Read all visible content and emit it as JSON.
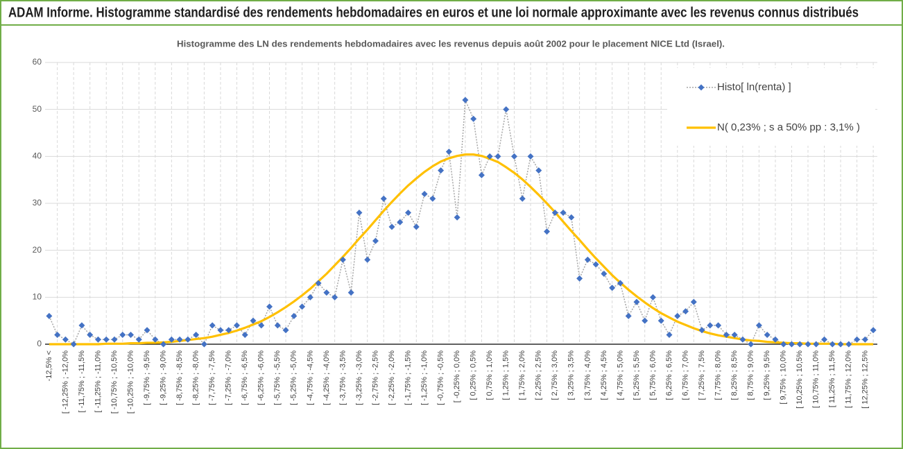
{
  "chart_data": {
    "type": "line",
    "title": "ADAM Informe. Histogramme standardisé des rendements hebdomadaires en euros et une loi normale approximante avec les revenus connus distribués",
    "subtitle": "Histogramme des LN des rendements hebdomadaires avec les revenus depuis août 2002 pour le placement NICE Ltd (Israel).",
    "categories": [
      "-12,5% <",
      null,
      "[ -12,25% ; -12,0%",
      null,
      "[ -11,75% ; -11,5%",
      null,
      "[ -11,25% ; -11,0%",
      null,
      "[ -10,75% ; -10,5%",
      null,
      "[ -10,25% ; -10,0%",
      null,
      "[ -9,75% ; -9,5%",
      null,
      "[ -9,25% ; -9,0%",
      null,
      "[ -8,75% ; -8,5%",
      null,
      "[ -8,25% ; -8,0%",
      null,
      "[ -7,75% ; -7,5%",
      null,
      "[ -7,25% ; -7,0%",
      null,
      "[ -6,75% ; -6,5%",
      null,
      "[ -6,25% ; -6,0%",
      null,
      "[ -5,75% ; -5,5%",
      null,
      "[ -5,25% ; -5,0%",
      null,
      "[ -4,75% ; -4,5%",
      null,
      "[ -4,25% ; -4,0%",
      null,
      "[ -3,75% ; -3,5%",
      null,
      "[ -3,25% ; -3,0%",
      null,
      "[ -2,75% ; -2,5%",
      null,
      "[ -2,25% ; -2,0%",
      null,
      "[ -1,75% ; -1,5%",
      null,
      "[ -1,25% ; -1,0%",
      null,
      "[ -0,75% ; -0,5%",
      null,
      "[ -0,25% ; 0,0%",
      null,
      "[ 0,25% ; 0,5%",
      null,
      "[ 0,75% ; 1,0%",
      null,
      "[ 1,25% ; 1,5%",
      null,
      "[ 1,75% ; 2,0%",
      null,
      "[ 2,25% ; 2,5%",
      null,
      "[ 2,75% ; 3,0%",
      null,
      "[ 3,25% ; 3,5%",
      null,
      "[ 3,75% ; 4,0%",
      null,
      "[ 4,25% ; 4,5%",
      null,
      "[ 4,75% ; 5,0%",
      null,
      "[ 5,25% ; 5,5%",
      null,
      "[ 5,75% ; 6,0%",
      null,
      "[ 6,25% ; 6,5%",
      null,
      "[ 6,75% ; 7,0%",
      null,
      "[ 7,25% ; 7,5%",
      null,
      "[ 7,75% ; 8,0%",
      null,
      "[ 8,25% ; 8,5%",
      null,
      "[ 8,75% ; 9,0%",
      null,
      "[ 9,25% ; 9,5%",
      null,
      "[ 9,75% ; 10,0%",
      null,
      "[ 10,25% ; 10,5%",
      null,
      "[ 10,75% ; 11,0%",
      null,
      "[ 11,25% ; 11,5%",
      null,
      "[ 11,75% ; 12,0%",
      null,
      "[ 12,25% ; 12,5%",
      null
    ],
    "series": [
      {
        "name": "Histo[ ln(renta) ]",
        "color": "#4472c4",
        "line_color": "#a5a5a5",
        "marker": "diamond",
        "values": [
          6,
          2,
          1,
          0,
          4,
          2,
          1,
          1,
          1,
          2,
          2,
          1,
          3,
          1,
          0,
          1,
          1,
          1,
          2,
          0,
          4,
          3,
          3,
          4,
          2,
          5,
          4,
          8,
          4,
          3,
          6,
          8,
          10,
          13,
          11,
          10,
          18,
          11,
          28,
          18,
          22,
          31,
          25,
          26,
          28,
          25,
          32,
          31,
          37,
          41,
          27,
          52,
          48,
          36,
          40,
          40,
          50,
          40,
          31,
          40,
          37,
          24,
          28,
          28,
          27,
          14,
          18,
          17,
          15,
          12,
          13,
          6,
          9,
          5,
          10,
          5,
          2,
          6,
          7,
          9,
          3,
          4,
          4,
          2,
          2,
          1,
          0,
          4,
          2,
          1,
          0,
          0,
          0,
          0,
          0,
          1,
          0,
          0,
          0,
          1,
          1,
          3
        ]
      },
      {
        "name": "N( 0,23% ; s a 50% pp : 3,1% )",
        "color": "#ffc000",
        "marker": "none",
        "values": [
          0,
          0,
          0,
          0,
          0,
          0,
          0,
          0.1,
          0.1,
          0.1,
          0.2,
          0.2,
          0.3,
          0.3,
          0.4,
          0.5,
          0.7,
          0.9,
          1.1,
          1.3,
          1.6,
          2.0,
          2.4,
          2.9,
          3.5,
          4.2,
          4.9,
          5.8,
          6.8,
          7.9,
          9.1,
          10.4,
          11.8,
          13.4,
          15.0,
          16.8,
          18.6,
          20.5,
          22.5,
          24.4,
          26.4,
          28.4,
          30.3,
          32.1,
          33.8,
          35.3,
          36.7,
          37.9,
          38.9,
          39.6,
          40.1,
          40.4,
          40.4,
          40.1,
          39.5,
          38.8,
          37.7,
          36.5,
          35.1,
          33.5,
          31.8,
          30.0,
          28.1,
          26.1,
          24.1,
          22.2,
          20.2,
          18.3,
          16.5,
          14.7,
          13.1,
          11.6,
          10.2,
          8.9,
          7.7,
          6.6,
          5.7,
          4.8,
          4.1,
          3.4,
          2.8,
          2.3,
          1.9,
          1.6,
          1.3,
          1.0,
          0.8,
          0.7,
          0.5,
          0.4,
          0.3,
          0.2,
          0.2,
          0.1,
          0.1,
          0.1,
          0.1,
          0,
          0,
          0,
          0,
          0
        ]
      }
    ],
    "ylim": [
      0,
      60
    ],
    "yticks": [
      0,
      10,
      20,
      30,
      40,
      50,
      60
    ],
    "grid": true,
    "legend": "top-right"
  }
}
